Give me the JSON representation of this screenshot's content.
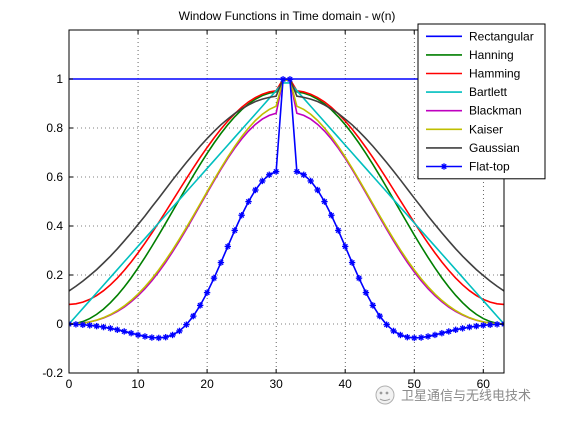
{
  "chart_data": {
    "type": "line",
    "title": "Window Functions in Time domain - w(n)",
    "xlabel": "",
    "ylabel": "",
    "xlim": [
      0,
      63
    ],
    "ylim": [
      -0.2,
      1.2
    ],
    "xticks": [
      0,
      10,
      20,
      30,
      40,
      50,
      60
    ],
    "xtick_labels": [
      "0",
      "10",
      "20",
      "30",
      "40",
      "50",
      "60"
    ],
    "yticks": [
      -0.2,
      0,
      0.2,
      0.4,
      0.6,
      0.8,
      1
    ],
    "ytick_labels": [
      "-0.2",
      "0",
      "0.2",
      "0.4",
      "0.6",
      "0.8",
      "1"
    ],
    "grid": true,
    "grid_style": "dotted",
    "legend_position": "top-right",
    "x": [
      0,
      1,
      2,
      3,
      4,
      5,
      6,
      7,
      8,
      9,
      10,
      11,
      12,
      13,
      14,
      15,
      16,
      17,
      18,
      19,
      20,
      21,
      22,
      23,
      24,
      25,
      26,
      27,
      28,
      29,
      30,
      31,
      32,
      33,
      34,
      35,
      36,
      37,
      38,
      39,
      40,
      41,
      42,
      43,
      44,
      45,
      46,
      47,
      48,
      49,
      50,
      51,
      52,
      53,
      54,
      55,
      56,
      57,
      58,
      59,
      60,
      61,
      62,
      63
    ],
    "series": [
      {
        "name": "Rectangular",
        "color": "#0000ff",
        "marker": "none",
        "values": [
          1,
          1,
          1,
          1,
          1,
          1,
          1,
          1,
          1,
          1,
          1,
          1,
          1,
          1,
          1,
          1,
          1,
          1,
          1,
          1,
          1,
          1,
          1,
          1,
          1,
          1,
          1,
          1,
          1,
          1,
          1,
          1,
          1,
          1,
          1,
          1,
          1,
          1,
          1,
          1,
          1,
          1,
          1,
          1,
          1,
          1,
          1,
          1,
          1,
          1,
          1,
          1,
          1,
          1,
          1,
          1,
          1,
          1,
          1,
          1,
          1,
          1,
          1,
          1
        ]
      },
      {
        "name": "Hanning",
        "color": "#007f00",
        "marker": "none",
        "values": [
          0,
          0.0025,
          0.0099,
          0.0222,
          0.0392,
          0.0608,
          0.0869,
          0.117,
          0.1509,
          0.1883,
          0.2287,
          0.2716,
          0.3168,
          0.3636,
          0.4116,
          0.4603,
          0.5092,
          0.5577,
          0.6055,
          0.6518,
          0.6962,
          0.7383,
          0.7775,
          0.8135,
          0.8458,
          0.8742,
          0.8983,
          0.9178,
          0.9326,
          0.9425,
          0.9475,
          0.999,
          0.999,
          0.9475,
          0.9425,
          0.9326,
          0.9178,
          0.8983,
          0.8742,
          0.8458,
          0.8135,
          0.7775,
          0.7383,
          0.6962,
          0.6518,
          0.6055,
          0.5577,
          0.5092,
          0.4603,
          0.4116,
          0.3636,
          0.3168,
          0.2716,
          0.2287,
          0.1883,
          0.1509,
          0.117,
          0.0869,
          0.0608,
          0.0392,
          0.0222,
          0.0099,
          0.0025,
          0
        ]
      },
      {
        "name": "Hamming",
        "color": "#ff0000",
        "marker": "none",
        "values": [
          0.08,
          0.0823,
          0.0891,
          0.1004,
          0.1161,
          0.136,
          0.1599,
          0.1876,
          0.2188,
          0.2532,
          0.2904,
          0.3299,
          0.3714,
          0.4145,
          0.4587,
          0.5035,
          0.5485,
          0.5931,
          0.6371,
          0.6797,
          0.7205,
          0.7592,
          0.7953,
          0.8284,
          0.8581,
          0.8843,
          0.9064,
          0.9244,
          0.938,
          0.9471,
          0.9517,
          0.9991,
          0.9991,
          0.9517,
          0.9471,
          0.938,
          0.9244,
          0.9064,
          0.8843,
          0.8581,
          0.8284,
          0.7953,
          0.7592,
          0.7205,
          0.6797,
          0.6371,
          0.5931,
          0.5485,
          0.5035,
          0.4587,
          0.4145,
          0.3714,
          0.3299,
          0.2904,
          0.2532,
          0.2188,
          0.1876,
          0.1599,
          0.136,
          0.1161,
          0.1004,
          0.0891,
          0.0823,
          0.08
        ]
      },
      {
        "name": "Bartlett",
        "color": "#00bfbf",
        "marker": "none",
        "values": [
          0,
          0.0317,
          0.0635,
          0.0952,
          0.127,
          0.1587,
          0.1905,
          0.2222,
          0.254,
          0.2857,
          0.3175,
          0.3492,
          0.381,
          0.4127,
          0.4444,
          0.4762,
          0.5079,
          0.5397,
          0.5714,
          0.6032,
          0.6349,
          0.6667,
          0.6984,
          0.7302,
          0.7619,
          0.7937,
          0.8254,
          0.8571,
          0.8889,
          0.9206,
          0.9524,
          0.9841,
          0.9841,
          0.9524,
          0.9206,
          0.8889,
          0.8571,
          0.8254,
          0.7937,
          0.7619,
          0.7302,
          0.6984,
          0.6667,
          0.6349,
          0.6032,
          0.5714,
          0.5397,
          0.5079,
          0.4762,
          0.4444,
          0.4127,
          0.381,
          0.3492,
          0.3175,
          0.2857,
          0.254,
          0.2222,
          0.1905,
          0.1587,
          0.127,
          0.0952,
          0.0635,
          0.0317,
          0
        ]
      },
      {
        "name": "Blackman",
        "color": "#bf00bf",
        "marker": "none",
        "values": [
          0,
          0.0009,
          0.0037,
          0.0084,
          0.0153,
          0.0245,
          0.0364,
          0.0512,
          0.0692,
          0.0906,
          0.1156,
          0.1443,
          0.1767,
          0.2127,
          0.252,
          0.2945,
          0.3396,
          0.3869,
          0.4357,
          0.4853,
          0.535,
          0.584,
          0.6313,
          0.6761,
          0.7176,
          0.755,
          0.7877,
          0.815,
          0.8364,
          0.8516,
          0.8603,
          0.9968,
          0.9968,
          0.8603,
          0.8516,
          0.8364,
          0.815,
          0.7877,
          0.755,
          0.7176,
          0.6761,
          0.6313,
          0.584,
          0.535,
          0.4853,
          0.4357,
          0.3869,
          0.3396,
          0.2945,
          0.252,
          0.2127,
          0.1767,
          0.1443,
          0.1156,
          0.0906,
          0.0692,
          0.0512,
          0.0364,
          0.0245,
          0.0153,
          0.0084,
          0.0037,
          0.0009,
          0
        ]
      },
      {
        "name": "Kaiser",
        "color": "#bfbf00",
        "marker": "none",
        "values": [
          0.0,
          0.0008,
          0.0035,
          0.0085,
          0.0158,
          0.0258,
          0.0387,
          0.0546,
          0.0737,
          0.0963,
          0.1223,
          0.1518,
          0.1848,
          0.221,
          0.2604,
          0.3025,
          0.3471,
          0.3937,
          0.4418,
          0.4908,
          0.54,
          0.5887,
          0.6363,
          0.6819,
          0.7249,
          0.7645,
          0.8,
          0.8307,
          0.8561,
          0.8757,
          0.889,
          0.995,
          0.995,
          0.889,
          0.8757,
          0.8561,
          0.8307,
          0.8,
          0.7645,
          0.7249,
          0.6819,
          0.6363,
          0.5887,
          0.54,
          0.4908,
          0.4418,
          0.3937,
          0.3471,
          0.3025,
          0.2604,
          0.221,
          0.1848,
          0.1518,
          0.1223,
          0.0963,
          0.0737,
          0.0546,
          0.0387,
          0.0258,
          0.0158,
          0.0085,
          0.0035,
          0.0008,
          0.0
        ]
      },
      {
        "name": "Gaussian",
        "color": "#404040",
        "marker": "none",
        "values": [
          0.135,
          0.154,
          0.175,
          0.198,
          0.222,
          0.249,
          0.277,
          0.307,
          0.339,
          0.372,
          0.406,
          0.441,
          0.478,
          0.514,
          0.551,
          0.588,
          0.624,
          0.659,
          0.693,
          0.726,
          0.757,
          0.786,
          0.813,
          0.837,
          0.859,
          0.878,
          0.894,
          0.908,
          0.918,
          0.925,
          0.93,
          1.0,
          1.0,
          0.93,
          0.925,
          0.918,
          0.908,
          0.894,
          0.878,
          0.859,
          0.837,
          0.813,
          0.786,
          0.757,
          0.726,
          0.693,
          0.659,
          0.624,
          0.588,
          0.551,
          0.514,
          0.478,
          0.441,
          0.406,
          0.372,
          0.339,
          0.307,
          0.277,
          0.249,
          0.222,
          0.198,
          0.175,
          0.154,
          0.135
        ]
      },
      {
        "name": "Flat-top",
        "color": "#0000ff",
        "marker": "asterisk",
        "values": [
          -0.0004,
          -0.0014,
          -0.0031,
          -0.0055,
          -0.0087,
          -0.0127,
          -0.0177,
          -0.0236,
          -0.0303,
          -0.0374,
          -0.0445,
          -0.0508,
          -0.0553,
          -0.0568,
          -0.0538,
          -0.0448,
          -0.0282,
          -0.0027,
          0.0322,
          0.076,
          0.1281,
          0.1871,
          0.2508,
          0.3166,
          0.3819,
          0.4438,
          0.4996,
          0.5469,
          0.5839,
          0.6091,
          0.622,
          0.9988,
          0.9988,
          0.622,
          0.6091,
          0.5839,
          0.5469,
          0.4996,
          0.4438,
          0.3819,
          0.3166,
          0.2508,
          0.1871,
          0.1281,
          0.076,
          0.0322,
          -0.0027,
          -0.0282,
          -0.0448,
          -0.0538,
          -0.0568,
          -0.0553,
          -0.0508,
          -0.0445,
          -0.0374,
          -0.0303,
          -0.0236,
          -0.0177,
          -0.0127,
          -0.0087,
          -0.0055,
          -0.0031,
          -0.0014,
          -0.0004
        ]
      }
    ]
  },
  "watermark": {
    "text": "卫星通信与无线电技术"
  }
}
